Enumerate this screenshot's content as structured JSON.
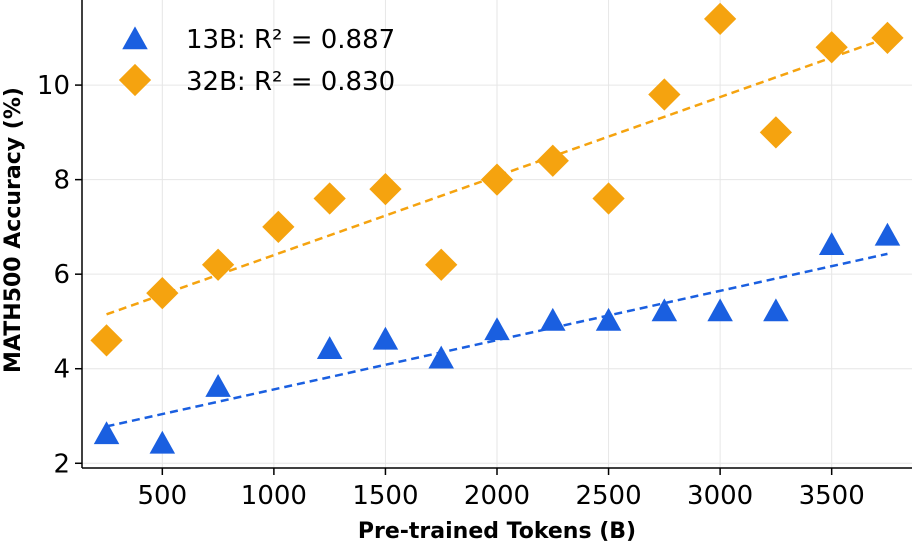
{
  "chart_data": {
    "type": "scatter",
    "title": "",
    "xlabel": "Pre-trained Tokens (B)",
    "ylabel": "MATH500 Accuracy (%)",
    "xlim": [
      140,
      3860
    ],
    "ylim": [
      1.9,
      11.8
    ],
    "xticks": [
      500,
      1000,
      1500,
      2000,
      2500,
      3000,
      3500
    ],
    "yticks": [
      2,
      4,
      6,
      8,
      10
    ],
    "grid": true,
    "legend_position": "top-left",
    "series": [
      {
        "name": "13B",
        "legend_label": "13B: R² = 0.887",
        "marker": "triangle",
        "color": "#1a5fe0",
        "x": [
          250,
          500,
          750,
          1250,
          1500,
          1750,
          2000,
          2250,
          2500,
          2750,
          3000,
          3250,
          3500,
          3750
        ],
        "y": [
          2.6,
          2.4,
          3.6,
          4.4,
          4.6,
          4.2,
          4.8,
          5.0,
          5.0,
          5.2,
          5.2,
          5.2,
          6.6,
          6.8
        ],
        "fit": {
          "x": [
            250,
            3750
          ],
          "y": [
            2.78,
            6.43
          ]
        }
      },
      {
        "name": "32B",
        "legend_label": "32B: R² = 0.830",
        "marker": "diamond",
        "color": "#f5a30f",
        "x": [
          250,
          500,
          750,
          1020,
          1250,
          1500,
          1750,
          2000,
          2250,
          2500,
          2750,
          3000,
          3250,
          3500,
          3750
        ],
        "y": [
          4.6,
          5.6,
          6.2,
          7.0,
          7.6,
          7.8,
          6.2,
          8.0,
          8.4,
          7.6,
          9.8,
          11.4,
          9.0,
          10.8,
          11.0
        ],
        "fit": {
          "x": [
            250,
            3750
          ],
          "y": [
            5.15,
            11.0
          ]
        }
      }
    ]
  }
}
